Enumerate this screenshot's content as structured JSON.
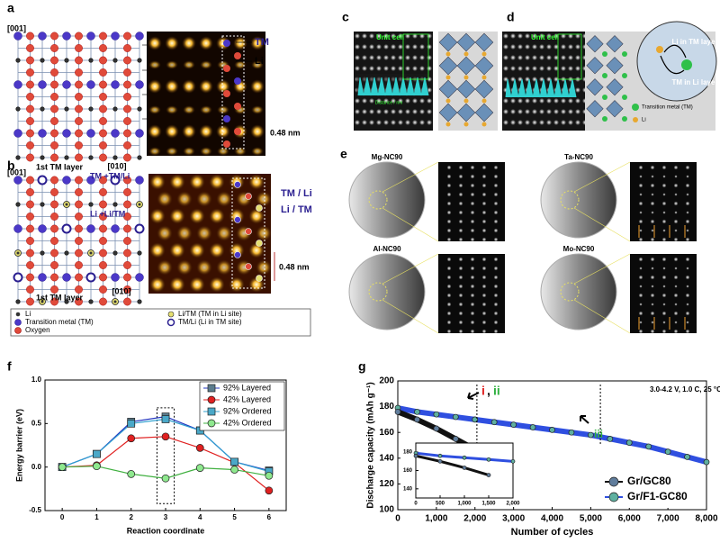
{
  "panels": {
    "labels": [
      "a",
      "b",
      "c",
      "d",
      "e",
      "f",
      "g"
    ],
    "a": {
      "axis_001": "[001]",
      "axis_010": "[010]",
      "layer": "1st TM layer",
      "tm": "TM",
      "li": "Li",
      "scale": "0.48 nm"
    },
    "b": {
      "axis_001": "[001]",
      "axis_010": "[010]",
      "layer": "1st TM layer",
      "tm_mix": "TM +TM/Li",
      "li_mix": "Li +Li/TM",
      "tm_li": "TM / Li",
      "li_tm": "Li / TM",
      "scale": "0.48 nm"
    },
    "legend": [
      "Li",
      "Transition metal (TM)",
      "Oxygen",
      "Li/TM (TM in Li site)",
      "TM/Li (Li in TM site)"
    ],
    "c": {
      "unit_cell": "Unit cell",
      "distance": "Distance / nm"
    },
    "d": {
      "unit_cell": "Unit cell",
      "li_in_tm": "Li in TM layer",
      "tm_in_li": "TM in Li layer",
      "tm": "Transition metal (TM)",
      "li": "Li"
    },
    "e": {
      "samples": [
        "Mg-NC90",
        "Ta-NC90",
        "Al-NC90",
        "Mo-NC90"
      ]
    }
  },
  "chart_data": [
    {
      "type": "line",
      "xlabel": "Reaction coordinate",
      "ylabel": "Energy barrier (eV)",
      "x": [
        0,
        1,
        2,
        3,
        4,
        5,
        6
      ],
      "xlim": [
        -0.5,
        6.5
      ],
      "xticks": [
        0,
        1,
        2,
        3,
        4,
        5,
        6
      ],
      "ylim": [
        -0.5,
        1.0
      ],
      "yticks": [
        -0.5,
        {
          "value": 0,
          "label": "0.0"
        },
        0.5,
        {
          "value": 1.0,
          "label": "1.0"
        }
      ],
      "legend": "upper right",
      "series": [
        {
          "name": "92% Layered",
          "color": "#5b7c8d",
          "line_color": "#2034c0",
          "marker": "square",
          "values": [
            0,
            0.15,
            0.52,
            0.58,
            0.42,
            0.06,
            -0.04
          ]
        },
        {
          "name": "42% Layered",
          "color": "#e02020",
          "line_color": "#e02020",
          "marker": "circle",
          "values": [
            0,
            0.02,
            0.33,
            0.35,
            0.22,
            0.05,
            -0.27
          ]
        },
        {
          "name": "92% Ordered",
          "color": "#4aa8c8",
          "line_color": "#30a0d0",
          "marker": "square",
          "values": [
            0,
            0.15,
            0.5,
            0.55,
            0.42,
            0.06,
            -0.05
          ]
        },
        {
          "name": "42% Ordered",
          "color": "#8ee88e",
          "line_color": "#40b040",
          "marker": "circle",
          "values": [
            0,
            0.01,
            -0.08,
            -0.13,
            -0.01,
            -0.03,
            -0.1
          ]
        }
      ]
    },
    {
      "type": "scatter",
      "xlabel": "Number of cycles",
      "ylabel": "Discharge capacity (mAh g⁻¹)",
      "xlim": [
        0,
        8000
      ],
      "xticks": [
        0,
        {
          "value": 1000,
          "label": "1,000"
        },
        {
          "value": 2000,
          "label": "2,000"
        },
        {
          "value": 3000,
          "label": "3,000"
        },
        {
          "value": 4000,
          "label": "4,000"
        },
        {
          "value": 5000,
          "label": "5,000"
        },
        {
          "value": 6000,
          "label": "6,000"
        },
        {
          "value": 7000,
          "label": "7,000"
        },
        {
          "value": 8000,
          "label": "8,000"
        }
      ],
      "ylim": [
        100,
        200
      ],
      "yticks": [
        100,
        120,
        140,
        160,
        180,
        200
      ],
      "legend": "lower right",
      "annotations": [
        {
          "text": "i",
          "color": "#e02020"
        },
        {
          "text": ",",
          "color": "#000000"
        },
        {
          "text": "ii",
          "color": "#30b040"
        },
        {
          "text": "iii",
          "color": "#30b040"
        },
        {
          "text": "3.0-4.2 V, 1.0 C, 25 °C",
          "color": "#000000"
        }
      ],
      "series": [
        {
          "name": "Gr/GC80",
          "color": "#607d9c",
          "line_color": "#111111",
          "x": [
            0,
            500,
            1000,
            1500,
            2050
          ],
          "values": [
            176,
            170,
            163,
            155,
            146
          ]
        },
        {
          "name": "Gr/F1-GC80",
          "color": "#5fb0a0",
          "line_color": "#2f4fe0",
          "x": [
            0,
            500,
            1000,
            1500,
            2000,
            2500,
            3000,
            3500,
            4000,
            4500,
            5000,
            5500,
            6000,
            6500,
            7000,
            7500,
            8000
          ],
          "values": [
            179,
            176,
            174,
            172,
            170,
            168,
            166,
            164,
            162,
            160,
            158,
            155,
            152,
            149,
            145,
            141,
            137
          ]
        }
      ],
      "inset": {
        "xlim": [
          0,
          2000
        ],
        "xticks": [
          0,
          500,
          {
            "value": 1000,
            "label": "1,000"
          },
          {
            "value": 1500,
            "label": "1,500"
          },
          {
            "value": 2000,
            "label": "2,000"
          }
        ],
        "ylim": [
          130,
          190
        ],
        "yticks": [
          140,
          160,
          180
        ]
      }
    }
  ]
}
